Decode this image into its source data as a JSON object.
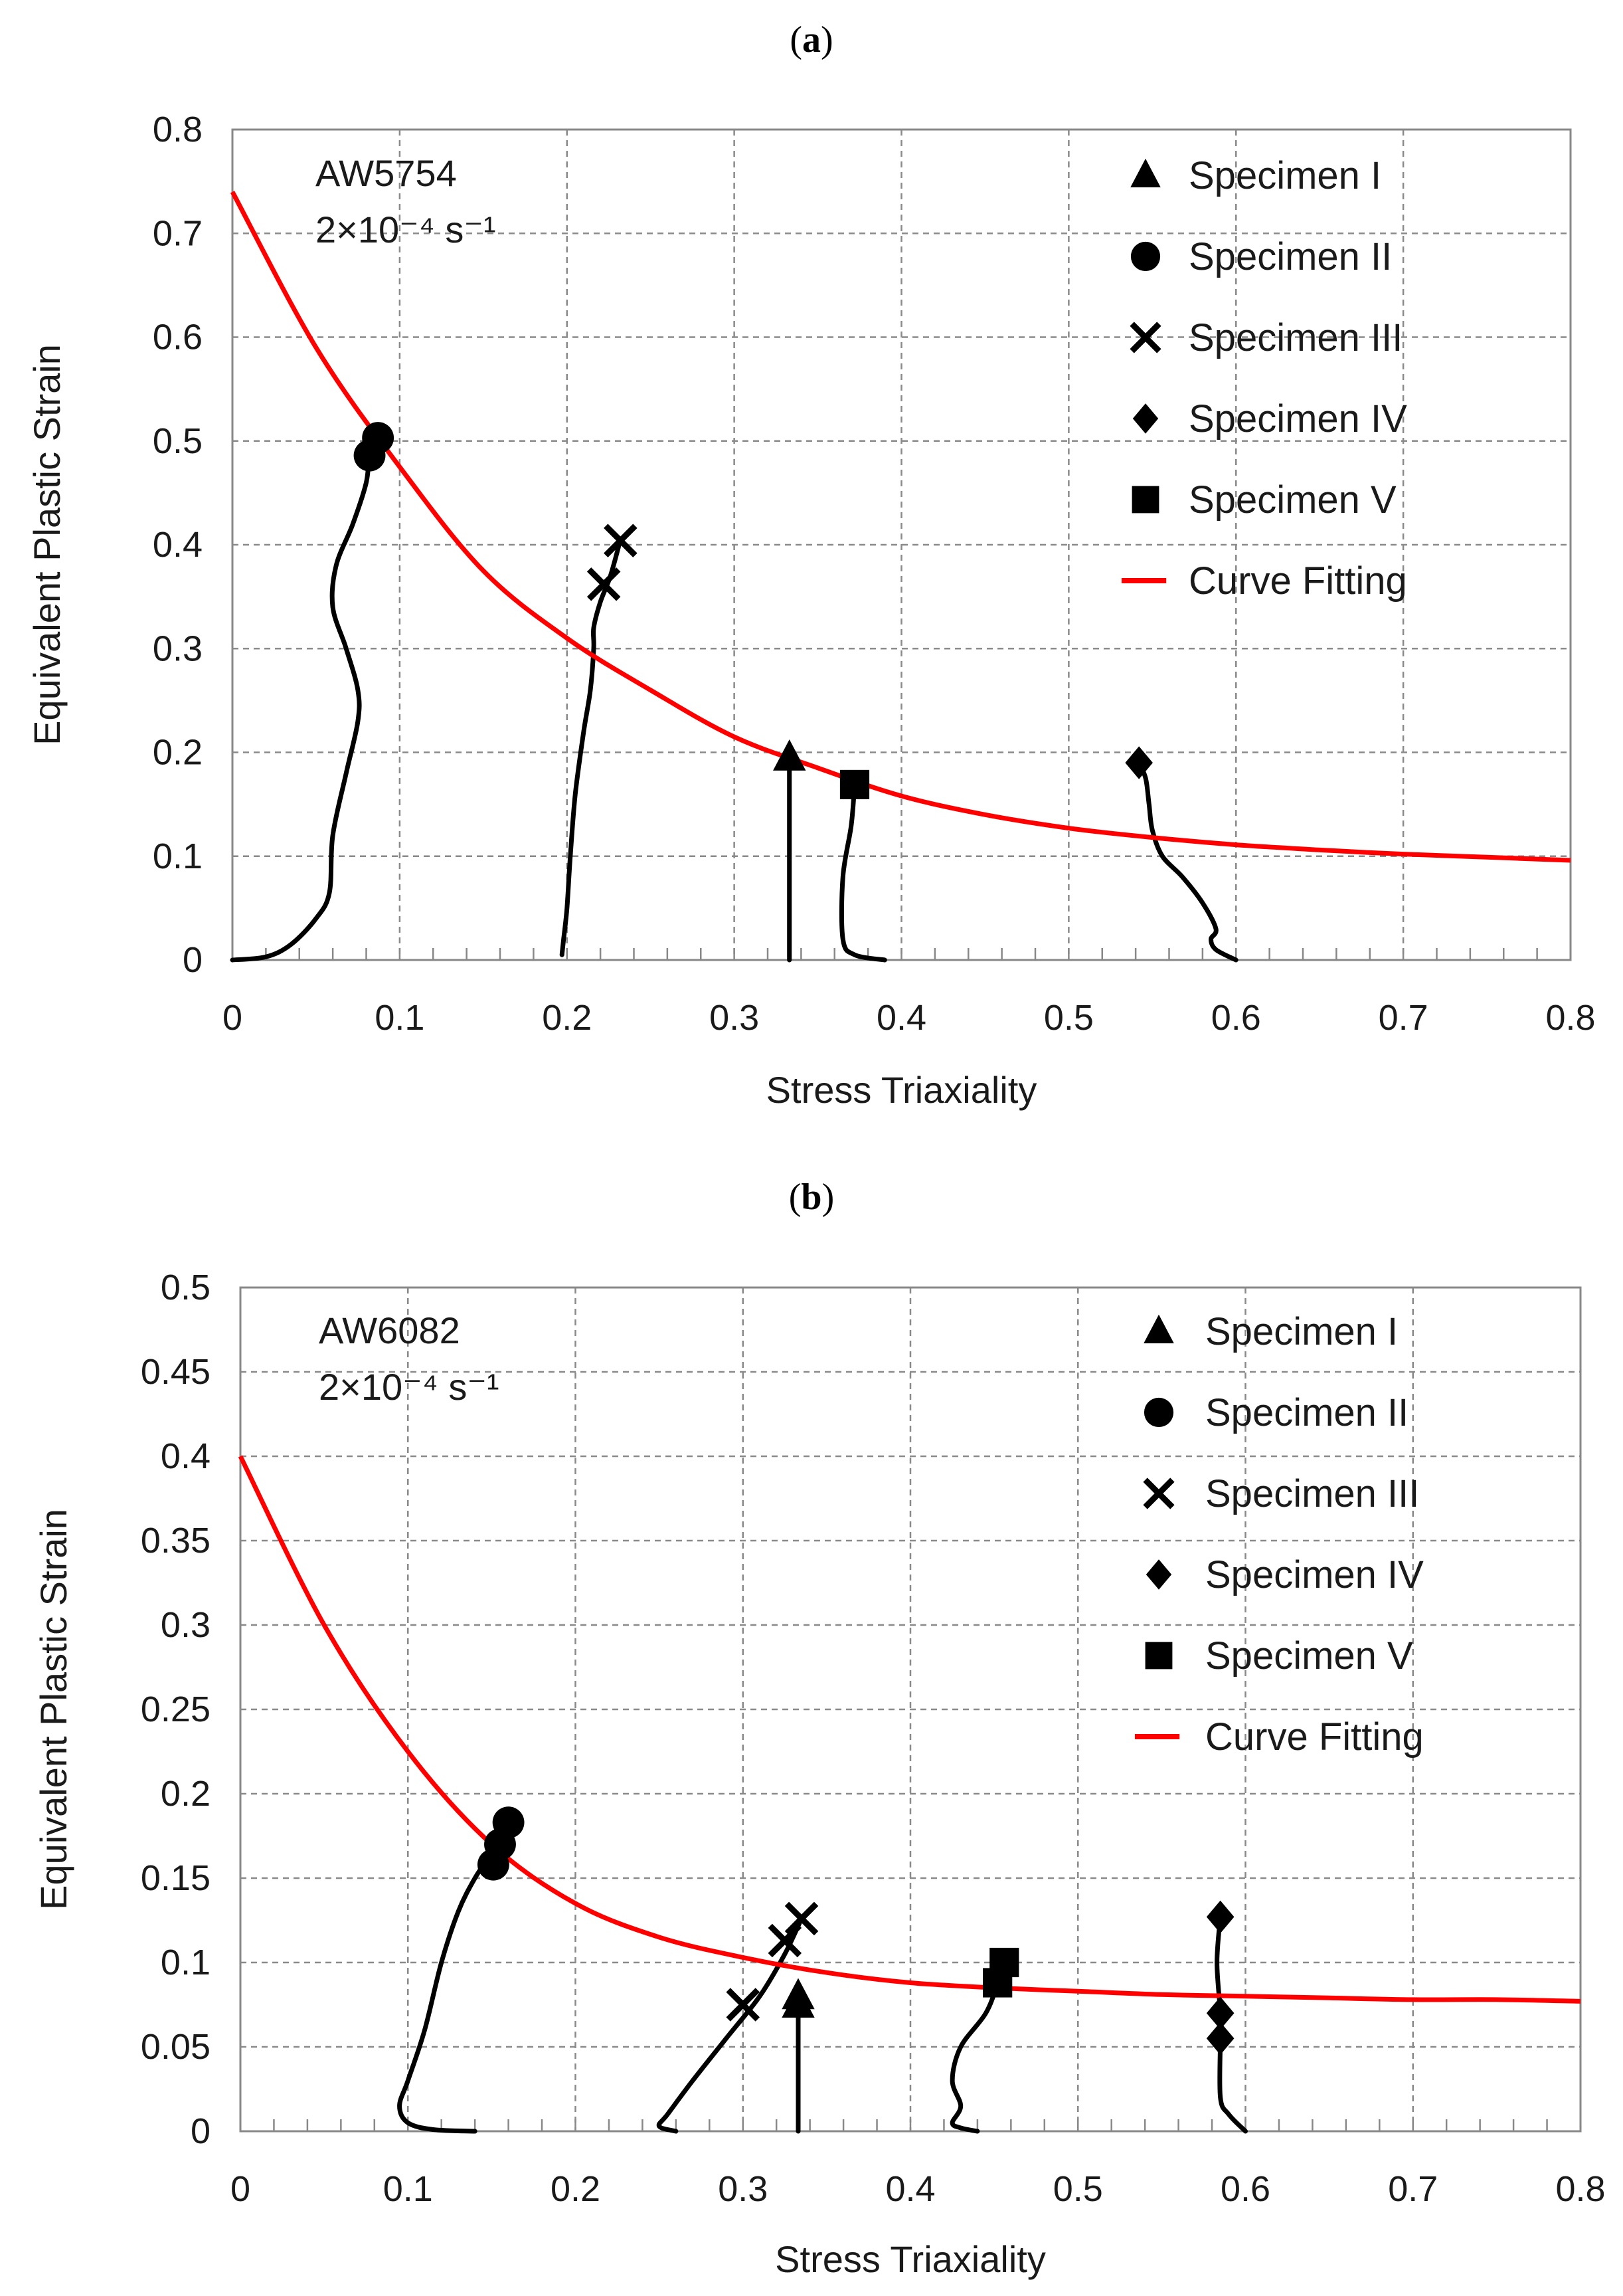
{
  "chart_data": [
    {
      "type": "scatter",
      "panel_label": "(a)",
      "panel_letter": "a",
      "annotation_line1": "AW5754",
      "annotation_line2": "2×10⁻⁴ s⁻¹",
      "xlabel": "Stress Triaxiality",
      "ylabel": "Equivalent Plastic Strain",
      "xlim": [
        0,
        0.8
      ],
      "ylim": [
        0,
        0.8
      ],
      "xticks": [
        "0",
        "0.1",
        "0.2",
        "0.3",
        "0.4",
        "0.5",
        "0.6",
        "0.7",
        "0.8"
      ],
      "yticks": [
        "0",
        "0.1",
        "0.2",
        "0.3",
        "0.4",
        "0.5",
        "0.6",
        "0.7",
        "0.8"
      ],
      "grid": true,
      "legend_position": "top-right",
      "legend": [
        {
          "name": "Specimen I",
          "marker": "triangle"
        },
        {
          "name": "Specimen II",
          "marker": "circle"
        },
        {
          "name": "Specimen III",
          "marker": "x"
        },
        {
          "name": "Specimen IV",
          "marker": "diamond"
        },
        {
          "name": "Specimen V",
          "marker": "square"
        },
        {
          "name": "Curve Fitting",
          "marker": "line"
        }
      ],
      "fit_color": "#ff0000",
      "fit_curve": {
        "x": [
          0,
          0.05,
          0.1,
          0.15,
          0.2,
          0.25,
          0.3,
          0.35,
          0.4,
          0.45,
          0.5,
          0.55,
          0.6,
          0.65,
          0.7,
          0.75,
          0.8
        ],
        "y": [
          0.74,
          0.59,
          0.475,
          0.375,
          0.31,
          0.26,
          0.215,
          0.185,
          0.158,
          0.14,
          0.127,
          0.118,
          0.111,
          0.106,
          0.102,
          0.099,
          0.096
        ]
      },
      "paths": [
        {
          "specimen": "Specimen II",
          "x": [
            0.0,
            0.02,
            0.035,
            0.05,
            0.058,
            0.06,
            0.068,
            0.075,
            0.075,
            0.068,
            0.06,
            0.062,
            0.072,
            0.08,
            0.082,
            0.085
          ],
          "y": [
            0.0,
            0.003,
            0.015,
            0.04,
            0.065,
            0.12,
            0.18,
            0.23,
            0.26,
            0.3,
            0.34,
            0.38,
            0.42,
            0.46,
            0.49,
            0.505
          ]
        },
        {
          "specimen": "Specimen III",
          "x": [
            0.197,
            0.198,
            0.2,
            0.202,
            0.205,
            0.21,
            0.214,
            0.216,
            0.216,
            0.22,
            0.226,
            0.232
          ],
          "y": [
            0.005,
            0.02,
            0.05,
            0.1,
            0.16,
            0.22,
            0.26,
            0.3,
            0.32,
            0.345,
            0.37,
            0.405
          ]
        },
        {
          "specimen": "Specimen I",
          "x": [
            0.333,
            0.333,
            0.333,
            0.333
          ],
          "y": [
            0.0,
            0.06,
            0.14,
            0.195
          ]
        },
        {
          "specimen": "Specimen V",
          "x": [
            0.39,
            0.372,
            0.365,
            0.365,
            0.37,
            0.372
          ],
          "y": [
            0.0,
            0.005,
            0.02,
            0.08,
            0.13,
            0.17
          ]
        },
        {
          "specimen": "Specimen IV",
          "x": [
            0.6,
            0.588,
            0.585,
            0.588,
            0.58,
            0.568,
            0.556,
            0.55,
            0.548,
            0.546,
            0.542
          ],
          "y": [
            0.0,
            0.01,
            0.02,
            0.03,
            0.055,
            0.08,
            0.1,
            0.125,
            0.15,
            0.175,
            0.19
          ]
        }
      ],
      "markers": [
        {
          "specimen": "Specimen II",
          "shape": "circle",
          "x": 0.082,
          "y": 0.486
        },
        {
          "specimen": "Specimen II",
          "shape": "circle",
          "x": 0.087,
          "y": 0.503
        },
        {
          "specimen": "Specimen III",
          "shape": "x",
          "x": 0.222,
          "y": 0.362
        },
        {
          "specimen": "Specimen III",
          "shape": "x",
          "x": 0.232,
          "y": 0.404
        },
        {
          "specimen": "Specimen I",
          "shape": "triangle",
          "x": 0.333,
          "y": 0.195
        },
        {
          "specimen": "Specimen V",
          "shape": "square",
          "x": 0.372,
          "y": 0.169
        },
        {
          "specimen": "Specimen IV",
          "shape": "diamond",
          "x": 0.542,
          "y": 0.19
        }
      ]
    },
    {
      "type": "scatter",
      "panel_label": "(b)",
      "panel_letter": "b",
      "annotation_line1": "AW6082",
      "annotation_line2": "2×10⁻⁴ s⁻¹",
      "xlabel": "Stress Triaxiality",
      "ylabel": "Equivalent Plastic Strain",
      "xlim": [
        0,
        0.8
      ],
      "ylim": [
        0,
        0.5
      ],
      "xticks": [
        "0",
        "0.1",
        "0.2",
        "0.3",
        "0.4",
        "0.5",
        "0.6",
        "0.7",
        "0.8"
      ],
      "yticks": [
        "0",
        "0.05",
        "0.1",
        "0.15",
        "0.2",
        "0.25",
        "0.3",
        "0.35",
        "0.4",
        "0.45",
        "0.5"
      ],
      "grid": true,
      "legend_position": "top-right",
      "legend": [
        {
          "name": "Specimen I",
          "marker": "triangle"
        },
        {
          "name": "Specimen II",
          "marker": "circle"
        },
        {
          "name": "Specimen III",
          "marker": "x"
        },
        {
          "name": "Specimen IV",
          "marker": "diamond"
        },
        {
          "name": "Specimen V",
          "marker": "square"
        },
        {
          "name": "Curve Fitting",
          "marker": "line"
        }
      ],
      "fit_color": "#ff0000",
      "fit_curve": {
        "x": [
          0,
          0.05,
          0.1,
          0.15,
          0.2,
          0.25,
          0.3,
          0.35,
          0.4,
          0.45,
          0.5,
          0.55,
          0.6,
          0.65,
          0.7,
          0.75,
          0.8
        ],
        "y": [
          0.4,
          0.3,
          0.225,
          0.17,
          0.135,
          0.115,
          0.103,
          0.094,
          0.088,
          0.085,
          0.083,
          0.081,
          0.08,
          0.079,
          0.078,
          0.078,
          0.077
        ]
      },
      "paths": [
        {
          "specimen": "Specimen II",
          "x": [
            0.14,
            0.115,
            0.1,
            0.095,
            0.1,
            0.11,
            0.12,
            0.13,
            0.14,
            0.15,
            0.16
          ],
          "y": [
            0.0,
            0.001,
            0.005,
            0.015,
            0.03,
            0.06,
            0.1,
            0.13,
            0.15,
            0.165,
            0.183
          ]
        },
        {
          "specimen": "Specimen III",
          "x": [
            0.26,
            0.25,
            0.255,
            0.27,
            0.29,
            0.31,
            0.325,
            0.335
          ],
          "y": [
            0.0,
            0.003,
            0.01,
            0.03,
            0.055,
            0.08,
            0.105,
            0.126
          ]
        },
        {
          "specimen": "Specimen I",
          "x": [
            0.333,
            0.333,
            0.333,
            0.333
          ],
          "y": [
            0.0,
            0.03,
            0.06,
            0.08
          ]
        },
        {
          "specimen": "Specimen V",
          "x": [
            0.44,
            0.43,
            0.425,
            0.43,
            0.425,
            0.43,
            0.445,
            0.452,
            0.455
          ],
          "y": [
            0.0,
            0.002,
            0.005,
            0.015,
            0.03,
            0.05,
            0.07,
            0.088,
            0.1
          ]
        },
        {
          "specimen": "Specimen IV",
          "x": [
            0.6,
            0.59,
            0.585,
            0.585,
            0.585,
            0.583,
            0.585
          ],
          "y": [
            0.0,
            0.01,
            0.02,
            0.055,
            0.07,
            0.1,
            0.127
          ]
        }
      ],
      "markers": [
        {
          "specimen": "Specimen II",
          "shape": "circle",
          "x": 0.151,
          "y": 0.158
        },
        {
          "specimen": "Specimen II",
          "shape": "circle",
          "x": 0.155,
          "y": 0.17
        },
        {
          "specimen": "Specimen II",
          "shape": "circle",
          "x": 0.16,
          "y": 0.183
        },
        {
          "specimen": "Specimen III",
          "shape": "x",
          "x": 0.3,
          "y": 0.075
        },
        {
          "specimen": "Specimen III",
          "shape": "x",
          "x": 0.325,
          "y": 0.113
        },
        {
          "specimen": "Specimen III",
          "shape": "x",
          "x": 0.335,
          "y": 0.126
        },
        {
          "specimen": "Specimen I",
          "shape": "triangle",
          "x": 0.333,
          "y": 0.08
        },
        {
          "specimen": "Specimen I",
          "shape": "triangle",
          "x": 0.333,
          "y": 0.075
        },
        {
          "specimen": "Specimen V",
          "shape": "square",
          "x": 0.452,
          "y": 0.088
        },
        {
          "specimen": "Specimen V",
          "shape": "square",
          "x": 0.456,
          "y": 0.1
        },
        {
          "specimen": "Specimen IV",
          "shape": "diamond",
          "x": 0.585,
          "y": 0.055
        },
        {
          "specimen": "Specimen IV",
          "shape": "diamond",
          "x": 0.585,
          "y": 0.07
        },
        {
          "specimen": "Specimen IV",
          "shape": "diamond",
          "x": 0.585,
          "y": 0.127
        }
      ]
    }
  ]
}
